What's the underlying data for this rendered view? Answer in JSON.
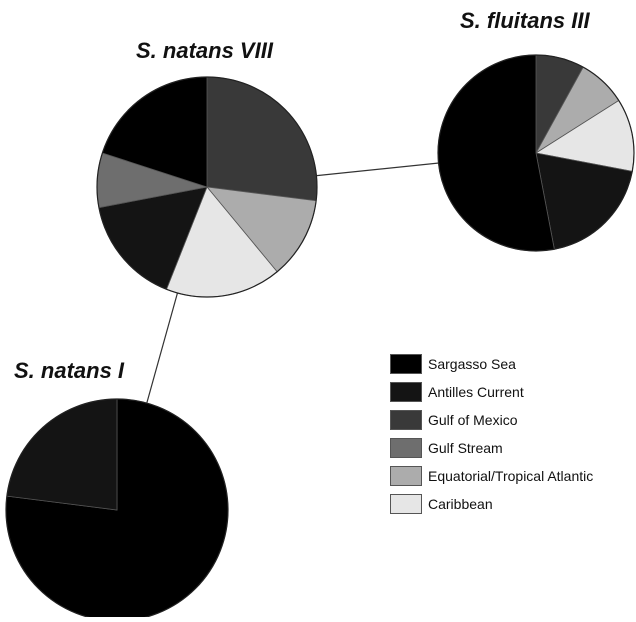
{
  "colors": {
    "Sargasso Sea": "#000000",
    "Antilles Current": "#141414",
    "Gulf of Mexico": "#393939",
    "Gulf Stream": "#6e6e6e",
    "Equatorial/Tropical Atlantic": "#acacac",
    "Caribbean": "#e6e6e6"
  },
  "chart_data": [
    {
      "type": "pie",
      "title": "S. natans VIII",
      "labels": [
        "Gulf of Mexico",
        "Equatorial/Tropical Atlantic",
        "Caribbean",
        "Antilles Current",
        "Gulf Stream",
        "Sargasso Sea"
      ],
      "values": [
        27,
        12,
        17,
        16,
        8,
        20
      ]
    },
    {
      "type": "pie",
      "title": "S. fluitans III",
      "labels": [
        "Gulf of Mexico",
        "Equatorial/Tropical Atlantic",
        "Caribbean",
        "Antilles Current",
        "Sargasso Sea"
      ],
      "values": [
        8,
        8,
        12,
        19,
        53
      ]
    },
    {
      "type": "pie",
      "title": "S. natans I",
      "labels": [
        "Sargasso Sea",
        "Antilles Current"
      ],
      "values": [
        77,
        23
      ]
    }
  ],
  "legend": {
    "items": [
      "Sargasso Sea",
      "Antilles Current",
      "Gulf of Mexico",
      "Gulf Stream",
      "Equatorial/Tropical Atlantic",
      "Caribbean"
    ]
  }
}
